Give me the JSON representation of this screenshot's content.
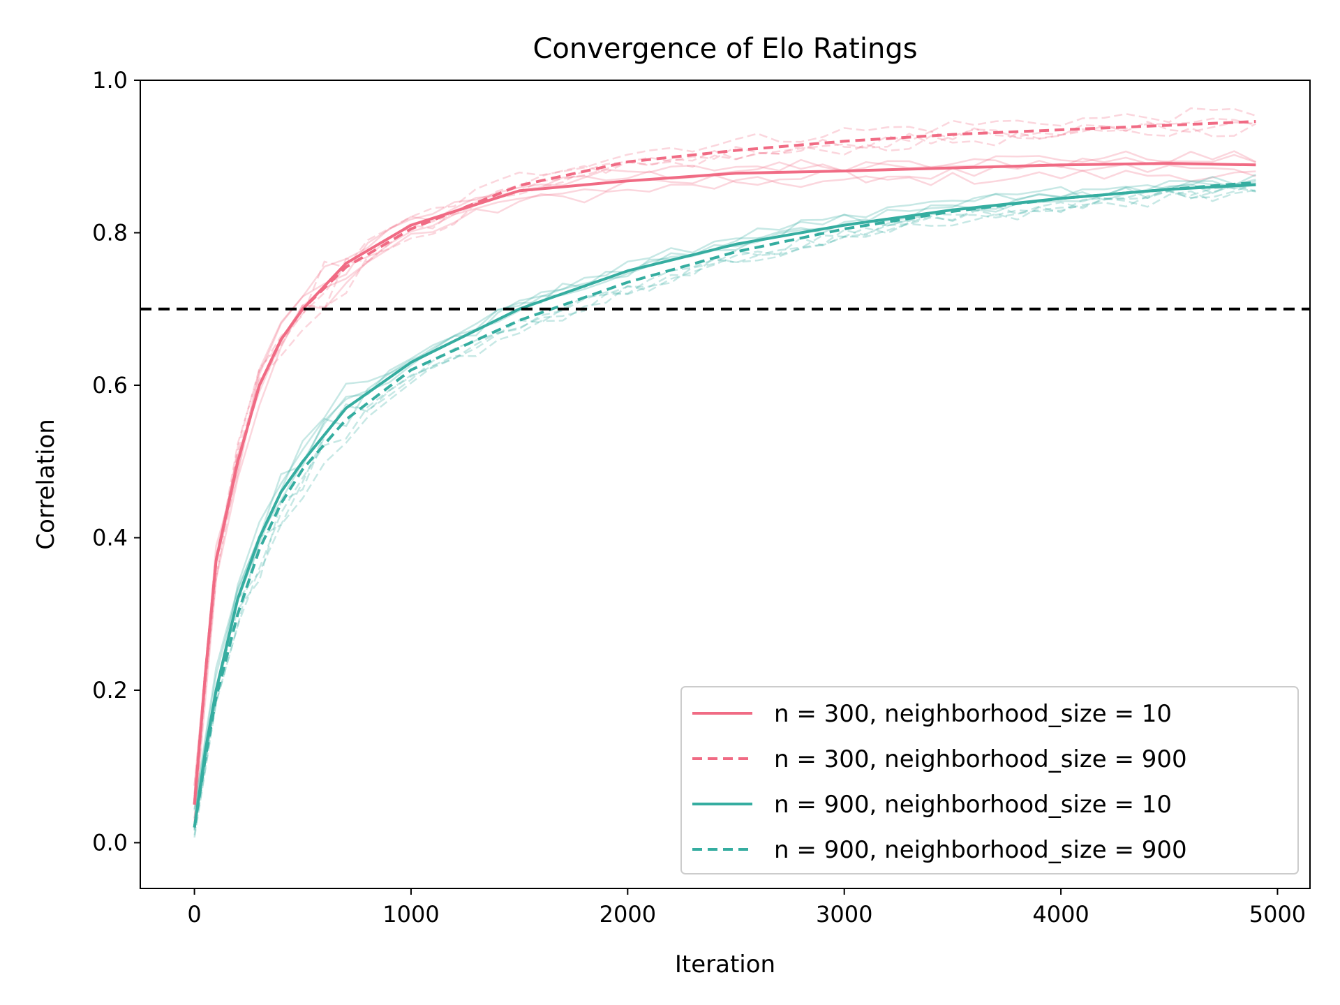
{
  "chart_data": {
    "type": "line",
    "title": "Convergence of Elo Ratings",
    "xlabel": "Iteration",
    "ylabel": "Correlation",
    "xlim": [
      -250,
      5150
    ],
    "ylim": [
      -0.06,
      1.0
    ],
    "xticks": [
      0,
      1000,
      2000,
      3000,
      4000,
      5000
    ],
    "xtick_labels": [
      "0",
      "1000",
      "2000",
      "3000",
      "4000",
      "5000"
    ],
    "yticks": [
      0.0,
      0.2,
      0.4,
      0.6,
      0.8,
      1.0
    ],
    "ytick_labels": [
      "0.0",
      "0.2",
      "0.4",
      "0.6",
      "0.8",
      "1.0"
    ],
    "grid": false,
    "legend_position": "lower-right",
    "reference_lines": [
      {
        "axis": "y",
        "value": 0.7,
        "style": "dashed",
        "color": "#000000"
      }
    ],
    "x": [
      0,
      50,
      100,
      200,
      300,
      400,
      500,
      700,
      1000,
      1500,
      2000,
      2500,
      3000,
      3500,
      4000,
      4500,
      4900
    ],
    "series": [
      {
        "name": "n = 300, neighborhood_size = 10",
        "color": "#f06b84",
        "dash": "solid",
        "values": [
          0.05,
          0.22,
          0.37,
          0.5,
          0.6,
          0.66,
          0.7,
          0.76,
          0.81,
          0.855,
          0.868,
          0.878,
          0.881,
          0.885,
          0.889,
          0.891,
          0.889
        ]
      },
      {
        "name": "n = 300, neighborhood_size = 900",
        "color": "#f06b84",
        "dash": "dashed",
        "values": [
          0.05,
          0.22,
          0.37,
          0.5,
          0.6,
          0.66,
          0.7,
          0.755,
          0.805,
          0.862,
          0.893,
          0.908,
          0.92,
          0.929,
          0.935,
          0.941,
          0.946
        ]
      },
      {
        "name": "n = 900, neighborhood_size = 10",
        "color": "#35ada0",
        "dash": "solid",
        "values": [
          0.02,
          0.12,
          0.2,
          0.32,
          0.4,
          0.46,
          0.5,
          0.57,
          0.63,
          0.7,
          0.75,
          0.785,
          0.81,
          0.83,
          0.845,
          0.857,
          0.863
        ]
      },
      {
        "name": "n = 900, neighborhood_size = 900",
        "color": "#35ada0",
        "dash": "dashed",
        "values": [
          0.02,
          0.11,
          0.19,
          0.3,
          0.385,
          0.445,
          0.49,
          0.555,
          0.62,
          0.685,
          0.735,
          0.775,
          0.805,
          0.828,
          0.845,
          0.857,
          0.866
        ]
      }
    ]
  }
}
